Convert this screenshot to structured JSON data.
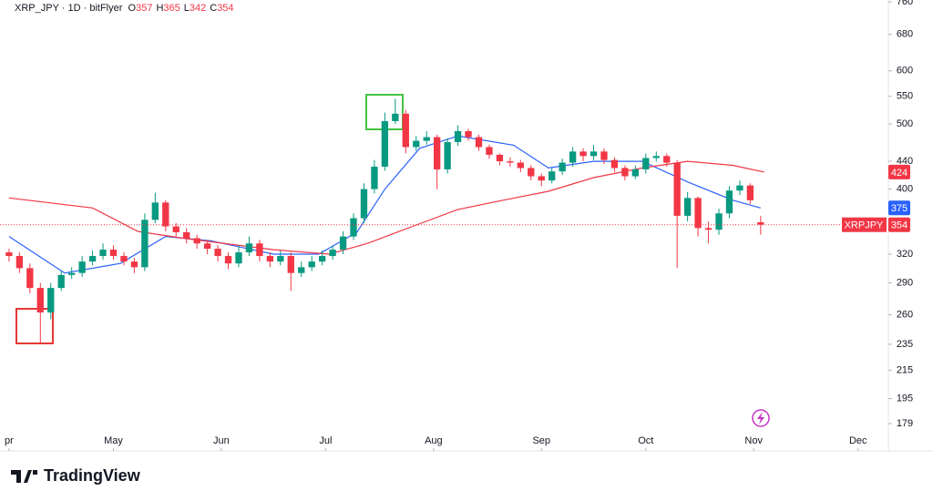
{
  "chart_data": {
    "type": "candlestick",
    "title": "XRP_JPY · 1D · bitFlyer",
    "ohlc_header": [
      {
        "label": "O",
        "value": 357
      },
      {
        "label": "H",
        "value": 365
      },
      {
        "label": "L",
        "value": 342
      },
      {
        "label": "C",
        "value": 354
      }
    ],
    "log_scale": true,
    "up_color": "#089981",
    "down_color": "#f23645",
    "xlim": [
      -2.6,
      252.7
    ],
    "xticks": [
      {
        "value": 0,
        "label": "pr"
      },
      {
        "value": 30,
        "label": "May"
      },
      {
        "value": 61,
        "label": "Jun"
      },
      {
        "value": 91,
        "label": "Jul"
      },
      {
        "value": 122,
        "label": "Aug"
      },
      {
        "value": 153,
        "label": "Sep"
      },
      {
        "value": 183,
        "label": "Oct"
      },
      {
        "value": 214,
        "label": "Nov"
      },
      {
        "value": 244,
        "label": "Dec"
      }
    ],
    "ylim": [
      163,
      765
    ],
    "yticks": [
      179,
      195,
      215,
      235,
      260,
      290,
      320,
      400,
      440,
      500,
      550,
      600,
      680,
      760
    ],
    "x": [
      0,
      3,
      6,
      9,
      12,
      15,
      18,
      21,
      24,
      27,
      30,
      33,
      36,
      39,
      42,
      45,
      48,
      51,
      54,
      57,
      60,
      63,
      66,
      69,
      72,
      75,
      78,
      81,
      84,
      87,
      90,
      93,
      96,
      99,
      102,
      105,
      108,
      111,
      114,
      117,
      120,
      123,
      126,
      129,
      132,
      135,
      138,
      141,
      144,
      147,
      150,
      153,
      156,
      159,
      162,
      165,
      168,
      171,
      174,
      177,
      180,
      183,
      186,
      189,
      192,
      195,
      198,
      201,
      204,
      207,
      210,
      213,
      216
    ],
    "open": [
      322,
      318,
      305,
      285,
      262,
      285,
      298,
      300,
      312,
      318,
      325,
      318,
      312,
      306,
      360,
      382,
      352,
      345,
      338,
      332,
      326,
      318,
      310,
      322,
      332,
      318,
      312,
      318,
      300,
      306,
      312,
      318,
      325,
      340,
      362,
      400,
      432,
      505,
      518,
      462,
      472,
      478,
      428,
      470,
      488,
      478,
      462,
      450,
      440,
      438,
      430,
      418,
      412,
      425,
      438,
      455,
      448,
      455,
      442,
      430,
      418,
      428,
      445,
      448,
      438,
      365,
      388,
      350,
      348,
      368,
      398,
      405,
      357
    ],
    "high": [
      326,
      322,
      310,
      290,
      290,
      302,
      306,
      318,
      324,
      332,
      330,
      322,
      316,
      368,
      395,
      385,
      356,
      350,
      342,
      336,
      330,
      322,
      330,
      340,
      336,
      322,
      324,
      322,
      312,
      318,
      324,
      330,
      346,
      368,
      408,
      442,
      520,
      545,
      525,
      480,
      488,
      482,
      476,
      498,
      492,
      482,
      466,
      452,
      446,
      442,
      434,
      422,
      430,
      444,
      462,
      460,
      465,
      460,
      446,
      434,
      434,
      452,
      455,
      452,
      442,
      396,
      390,
      358,
      374,
      404,
      412,
      408,
      365
    ],
    "low": [
      312,
      300,
      280,
      235,
      256,
      282,
      294,
      296,
      308,
      314,
      314,
      308,
      300,
      302,
      356,
      346,
      340,
      332,
      326,
      320,
      312,
      304,
      306,
      318,
      312,
      306,
      308,
      282,
      296,
      302,
      308,
      314,
      320,
      336,
      356,
      394,
      426,
      500,
      452,
      456,
      466,
      400,
      422,
      464,
      472,
      456,
      444,
      434,
      432,
      424,
      412,
      404,
      408,
      420,
      432,
      440,
      442,
      436,
      424,
      412,
      414,
      422,
      440,
      432,
      305,
      358,
      340,
      332,
      342,
      362,
      392,
      380,
      342
    ],
    "close": [
      318,
      305,
      285,
      262,
      285,
      298,
      300,
      312,
      318,
      325,
      318,
      312,
      306,
      360,
      382,
      352,
      345,
      338,
      332,
      326,
      318,
      310,
      322,
      332,
      318,
      312,
      318,
      300,
      306,
      312,
      318,
      325,
      340,
      362,
      400,
      432,
      505,
      518,
      462,
      472,
      478,
      428,
      470,
      488,
      478,
      462,
      450,
      440,
      438,
      430,
      418,
      412,
      425,
      438,
      455,
      448,
      455,
      442,
      430,
      418,
      428,
      445,
      448,
      438,
      365,
      388,
      350,
      348,
      368,
      398,
      405,
      385,
      354
    ],
    "moving_averages": [
      {
        "color": "#2962ff",
        "x": [
          0,
          16,
          32,
          45,
          58,
          76,
          89,
          100,
          108,
          118,
          129,
          145,
          155,
          168,
          182,
          195,
          208,
          216
        ],
        "values": [
          340,
          300,
          310,
          340,
          335,
          320,
          320,
          345,
          400,
          460,
          480,
          465,
          430,
          440,
          440,
          410,
          385,
          375
        ]
      },
      {
        "color": "#f23645",
        "x": [
          0,
          24,
          37,
          50,
          76,
          92,
          103,
          116,
          129,
          142,
          155,
          168,
          182,
          195,
          208,
          217
        ],
        "values": [
          388,
          375,
          346,
          338,
          325,
          320,
          332,
          352,
          373,
          385,
          397,
          416,
          430,
          440,
          434,
          424
        ]
      }
    ],
    "price_labels": [
      {
        "value": 424,
        "color": "#f23645"
      },
      {
        "value": 375,
        "color": "#2962ff"
      },
      {
        "name": "XRPJPY",
        "value": 354,
        "color": "#f23645"
      }
    ],
    "brand": "TradingView"
  }
}
